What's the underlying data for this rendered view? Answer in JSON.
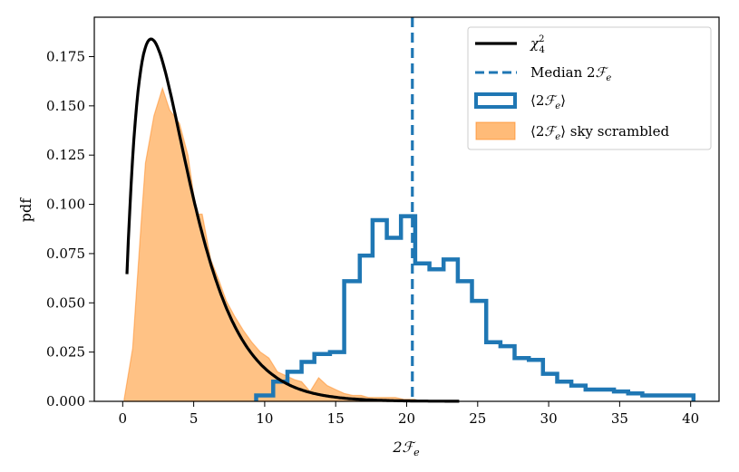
{
  "chart_data": {
    "type": "line",
    "xlabel": "2ℱe",
    "ylabel": "pdf",
    "xlim": [
      -2,
      42
    ],
    "ylim": [
      0,
      0.195
    ],
    "xticks": [
      0,
      5,
      10,
      15,
      20,
      25,
      30,
      35,
      40
    ],
    "yticks": [
      0.0,
      0.025,
      0.05,
      0.075,
      0.1,
      0.125,
      0.15,
      0.175
    ],
    "grid": false,
    "legend_position": "top-right",
    "legend": [
      {
        "name": "chi2",
        "label": "χ₄²",
        "style": "solid-line"
      },
      {
        "name": "median",
        "label": "Median 2ℱe",
        "style": "dashed-line"
      },
      {
        "name": "hist",
        "label": "⟨2ℱe⟩",
        "style": "step-box"
      },
      {
        "name": "scrambled",
        "label": "⟨2ℱe⟩ sky scrambled",
        "style": "filled-box"
      }
    ],
    "colors": {
      "chi2": "#000000",
      "median": "#1f77b4",
      "hist": "#1f77b4",
      "scrambled_fill": "#ffbb78",
      "scrambled_edge": "#ff7f0e"
    },
    "chi2_curve": {
      "dof": 4,
      "x_range": [
        0.3,
        23.7
      ]
    },
    "median_x": 20.4,
    "hist_edges": [
      9.4,
      10.6,
      11.6,
      12.6,
      13.5,
      14.6,
      15.6,
      16.7,
      17.6,
      18.6,
      19.6,
      20.6,
      21.6,
      22.6,
      23.6,
      24.6,
      25.6,
      26.6,
      27.6,
      28.6,
      29.6,
      30.6,
      31.6,
      32.6,
      33.6,
      34.6,
      35.6,
      36.6,
      37.6,
      38.6,
      39.6,
      40.2
    ],
    "hist_values": [
      0.003,
      0.01,
      0.015,
      0.02,
      0.024,
      0.025,
      0.061,
      0.074,
      0.092,
      0.083,
      0.094,
      0.07,
      0.067,
      0.072,
      0.061,
      0.051,
      0.03,
      0.028,
      0.022,
      0.021,
      0.014,
      0.01,
      0.008,
      0.006,
      0.006,
      0.005,
      0.004,
      0.003,
      0.003,
      0.003,
      0.003
    ],
    "scrambled_x": [
      0.1,
      0.7,
      1.3,
      1.6,
      2.2,
      2.8,
      3.3,
      4.0,
      4.6,
      5.2,
      5.6,
      6.2,
      6.8,
      7.3,
      7.9,
      8.5,
      9.1,
      9.7,
      10.3,
      10.9,
      11.5,
      12.1,
      12.6,
      13.2,
      13.8,
      14.4,
      15.0,
      15.6,
      16.2,
      16.8,
      17.3,
      18.0,
      18.6,
      19.2,
      19.8,
      20.6
    ],
    "scrambled_y": [
      0.001,
      0.027,
      0.091,
      0.121,
      0.145,
      0.159,
      0.148,
      0.141,
      0.125,
      0.095,
      0.095,
      0.072,
      0.061,
      0.051,
      0.043,
      0.036,
      0.03,
      0.025,
      0.022,
      0.015,
      0.013,
      0.011,
      0.01,
      0.005,
      0.012,
      0.008,
      0.006,
      0.004,
      0.003,
      0.003,
      0.002,
      0.002,
      0.002,
      0.002,
      0.001,
      0.001
    ]
  }
}
